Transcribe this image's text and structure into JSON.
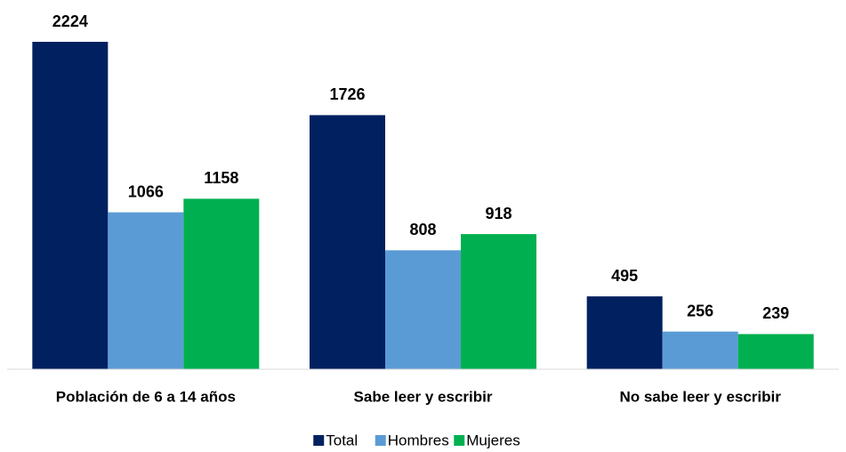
{
  "chart_data": {
    "type": "bar",
    "categories": [
      "Población de 6 a 14 años",
      "Sabe leer y escribir",
      "No sabe leer y escribir"
    ],
    "series": [
      {
        "name": "Total",
        "color": "#002060",
        "values": [
          2224,
          1726,
          495
        ]
      },
      {
        "name": "Hombres",
        "color": "#5b9bd5",
        "values": [
          1066,
          808,
          256
        ]
      },
      {
        "name": "Mujeres",
        "color": "#00b050",
        "values": [
          1158,
          918,
          239
        ]
      }
    ],
    "legend": "bottom"
  }
}
